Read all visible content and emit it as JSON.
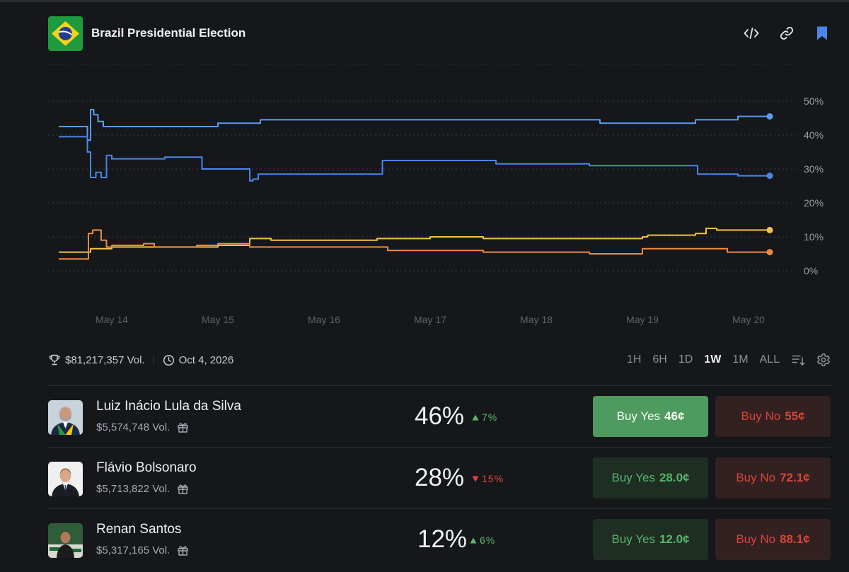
{
  "header": {
    "title": "Brazil Presidential Election",
    "icons": [
      "flag-brazil",
      "code-icon",
      "link-icon",
      "bookmark-icon"
    ]
  },
  "chart_data": {
    "type": "line",
    "x": [
      "May 14",
      "May 15",
      "May 16",
      "May 17",
      "May 18",
      "May 19",
      "May 20"
    ],
    "yticks": [
      "50%",
      "40%",
      "30%",
      "20%",
      "10%",
      "0%"
    ],
    "ylim": [
      0,
      50
    ],
    "grid": true,
    "series": [
      {
        "color": "#5b9bf6",
        "x": [
          13.5,
          13.75,
          13.77,
          13.8,
          13.83,
          13.87,
          13.92,
          14.0,
          14.5,
          14.95,
          15.0,
          15.4,
          16.0,
          16.5,
          17.0,
          17.5,
          18.0,
          18.5,
          18.6,
          19.0,
          19.4,
          19.5,
          19.9,
          20.2
        ],
        "y": [
          42.5,
          42.5,
          38.5,
          47.5,
          46,
          44,
          42.5,
          42.5,
          42.5,
          42.5,
          43.5,
          44.5,
          44.5,
          44.5,
          44.5,
          44.5,
          44.5,
          44.5,
          43.5,
          43.5,
          43.5,
          44.5,
          45.5,
          45.5
        ]
      },
      {
        "color": "#4a86e8",
        "x": [
          13.5,
          13.75,
          13.77,
          13.8,
          13.85,
          13.9,
          13.95,
          14.0,
          14.5,
          14.8,
          14.85,
          15.25,
          15.3,
          15.33,
          15.38,
          15.5,
          16.0,
          16.5,
          16.55,
          17.0,
          17.5,
          17.62,
          18.0,
          18.5,
          19.0,
          19.52,
          19.55,
          19.9,
          20.2
        ],
        "y": [
          39.5,
          39.5,
          35,
          27.5,
          29,
          27.5,
          34,
          33,
          33.5,
          33.5,
          30,
          30,
          26.5,
          27,
          28.5,
          28.5,
          28.5,
          28.5,
          32.5,
          32.5,
          32.5,
          31.5,
          31.5,
          31,
          31,
          28.5,
          28.5,
          28,
          28
        ]
      },
      {
        "color": "#f4c24a",
        "x": [
          13.5,
          13.75,
          13.8,
          14.0,
          14.5,
          14.8,
          15.0,
          15.1,
          15.3,
          15.5,
          16.0,
          16.5,
          17.0,
          17.5,
          18.0,
          18.5,
          19.0,
          19.05,
          19.5,
          19.6,
          19.7,
          19.9,
          20.2
        ],
        "y": [
          5.5,
          5.5,
          6.5,
          7,
          7,
          7,
          7.5,
          7.5,
          9.5,
          9,
          9,
          9.5,
          10,
          9.5,
          9.5,
          9.5,
          10,
          10.5,
          11,
          12.5,
          12,
          12,
          12
        ]
      },
      {
        "color": "#f08a3c",
        "x": [
          13.5,
          13.75,
          13.78,
          13.82,
          13.9,
          13.95,
          14.0,
          14.3,
          14.4,
          14.5,
          14.8,
          15.0,
          15.2,
          15.3,
          15.5,
          16.0,
          16.5,
          16.6,
          17.0,
          17.5,
          18.0,
          18.5,
          18.9,
          19.0,
          19.5,
          19.8,
          20.2
        ],
        "y": [
          3.5,
          3.5,
          11,
          12,
          9,
          7,
          7.5,
          8,
          7,
          7,
          7.5,
          8,
          8,
          7,
          7,
          7,
          7,
          6,
          6,
          5.5,
          5.5,
          5,
          5,
          6.5,
          6.5,
          5.5,
          5.5
        ]
      }
    ]
  },
  "meta": {
    "volume": "$81,217,357 Vol.",
    "end_date": "Oct 4, 2026"
  },
  "ranges": [
    "1H",
    "6H",
    "1D",
    "1W",
    "1M",
    "ALL"
  ],
  "active_range": "1W",
  "candidates": [
    {
      "name": "Luiz Inácio Lula da Silva",
      "volume": "$5,574,748 Vol.",
      "percent": "46%",
      "change": "7%",
      "direction": "up",
      "yes_label": "Buy Yes",
      "yes_price": "46¢",
      "no_label": "Buy No",
      "no_price": "55¢"
    },
    {
      "name": "Flávio Bolsonaro",
      "volume": "$5,713,822 Vol.",
      "percent": "28%",
      "change": "15%",
      "direction": "down",
      "yes_label": "Buy Yes",
      "yes_price": "28.0¢",
      "no_label": "Buy No",
      "no_price": "72.1¢"
    },
    {
      "name": "Renan Santos",
      "volume": "$5,317,165 Vol.",
      "percent": "12%",
      "change": "6%",
      "direction": "up",
      "yes_label": "Buy Yes",
      "yes_price": "12.0¢",
      "no_label": "Buy No",
      "no_price": "88.1¢"
    }
  ]
}
